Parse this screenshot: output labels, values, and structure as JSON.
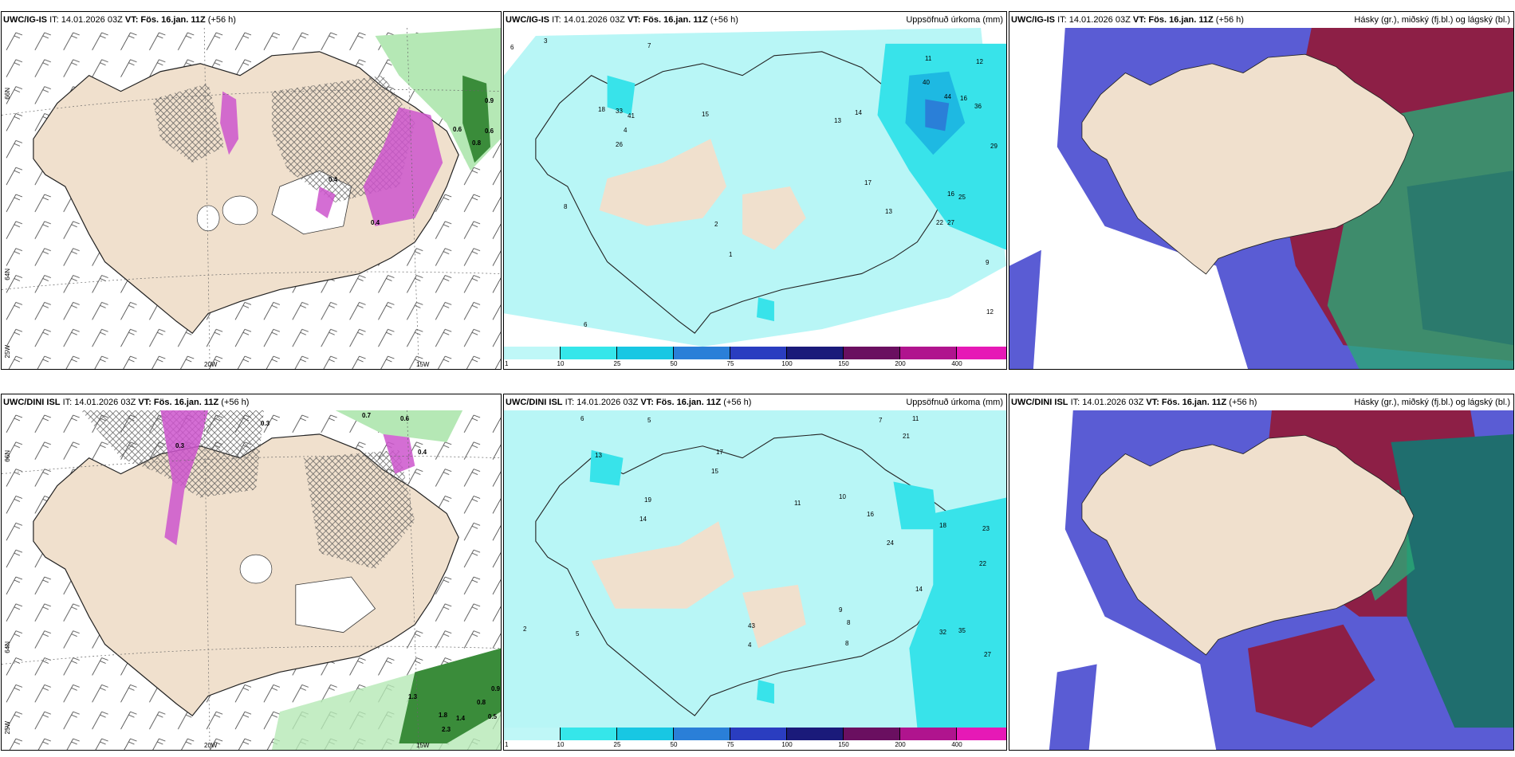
{
  "top": {
    "model": "UWC/IG-IS",
    "it": "IT: 14.01.2026 03Z",
    "vt": "VT: Fös. 16.jan. 11Z",
    "lead": "(+56 h)"
  },
  "bottom": {
    "model": "UWC/DINI ISL",
    "it": "IT: 14.01.2026 03Z",
    "vt": "VT: Fös. 16.jan. 11Z",
    "lead": "(+56 h)"
  },
  "precip_title": "Uppsöfnuð úrkoma (mm)",
  "cloud_title": "Hásky (gr.), miðský (fj.bl.) og lágský (bl.)",
  "axis": {
    "lat66": "66N",
    "lat64": "64N",
    "lon20": "20W",
    "lon15": "15W",
    "lon25": "25W"
  },
  "colorbar": {
    "ticks": [
      "1",
      "10",
      "25",
      "50",
      "75",
      "100",
      "150",
      "200",
      "400"
    ],
    "colors": [
      "#bff7f7",
      "#35e6ea",
      "#18c7e3",
      "#2a7fd8",
      "#2a3dc0",
      "#1a1a7a",
      "#6a0f60",
      "#b0148e",
      "#e619b6",
      "#f4a9ec"
    ]
  },
  "colors": {
    "land": "#f0e0cd",
    "ice": "#ffffff",
    "sea_precip": "#b8f6f6",
    "precip_mid": "#38e3ea",
    "precip_high": "#1eb9e2",
    "magenta": "#cc55cc",
    "green_light": "#b5e8b5",
    "green_dark": "#3a8c3a",
    "high_cloud": "#8d1f46",
    "mid_cloud": "#2aa876",
    "low_cloud": "#5a5cd4"
  },
  "wind_panel_top_labels": [
    "0.9",
    "0.6",
    "0.8",
    "0.6",
    "0.4",
    "0.4"
  ],
  "wind_panel_bottom_labels": [
    "0.7",
    "0.6",
    "0.3",
    "0.3",
    "0.4",
    "0.8",
    "0.9",
    "0.5",
    "1.8",
    "2.3",
    "1.4",
    "1.3"
  ],
  "precip_top_values": [
    "6",
    "3",
    "7",
    "12",
    "18",
    "33",
    "41",
    "26",
    "15",
    "11",
    "16",
    "13",
    "14",
    "40",
    "44",
    "36",
    "29",
    "25",
    "17",
    "22",
    "27",
    "16",
    "13",
    "9",
    "12",
    "6",
    "4",
    "2",
    "1",
    "8"
  ],
  "precip_bottom_values": [
    "6",
    "5",
    "7",
    "11",
    "21",
    "13",
    "15",
    "17",
    "19",
    "14",
    "16",
    "23",
    "22",
    "32",
    "35",
    "27",
    "9",
    "8",
    "43",
    "4",
    "5",
    "2",
    "10",
    "14",
    "24",
    "18",
    "8",
    "11"
  ]
}
